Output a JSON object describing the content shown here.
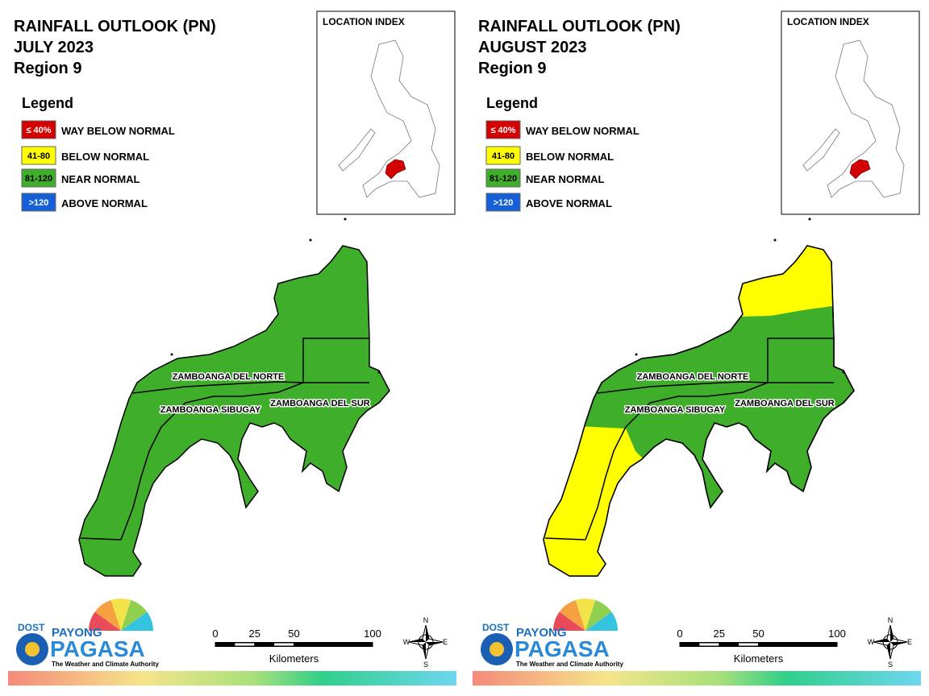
{
  "panels": [
    {
      "title": [
        "RAINFALL OUTLOOK (PN)",
        "JULY 2023",
        "Region 9"
      ],
      "location_index": "LOCATION INDEX",
      "legend": {
        "title": "Legend",
        "items": [
          {
            "range": "≤ 40%",
            "label": "WAY BELOW NORMAL",
            "color": "#d40000",
            "text_color": "#ffffff"
          },
          {
            "range": "41-80",
            "label": "BELOW NORMAL",
            "color": "#ffff00",
            "text_color": "#000000"
          },
          {
            "range": "81-120",
            "label": "NEAR NORMAL",
            "color": "#3fae2a",
            "text_color": "#000000"
          },
          {
            "range": ">120",
            "label": "ABOVE NORMAL",
            "color": "#1560d8",
            "text_color": "#ffffff"
          }
        ]
      },
      "provinces": [
        "ZAMBOANGA DEL NORTE",
        "ZAMBOANGA SIBUGAY",
        "ZAMBOANGA DEL SUR"
      ]
    },
    {
      "title": [
        "RAINFALL OUTLOOK (PN)",
        "AUGUST 2023",
        "Region 9"
      ],
      "location_index": "LOCATION INDEX",
      "legend": {
        "title": "Legend",
        "items": [
          {
            "range": "≤ 40%",
            "label": "WAY BELOW NORMAL",
            "color": "#d40000",
            "text_color": "#ffffff"
          },
          {
            "range": "41-80",
            "label": "BELOW NORMAL",
            "color": "#ffff00",
            "text_color": "#000000"
          },
          {
            "range": "81-120",
            "label": "NEAR NORMAL",
            "color": "#3fae2a",
            "text_color": "#000000"
          },
          {
            "range": ">120",
            "label": "ABOVE NORMAL",
            "color": "#1560d8",
            "text_color": "#ffffff"
          }
        ]
      },
      "provinces": [
        "ZAMBOANGA DEL NORTE",
        "ZAMBOANGA SIBUGAY",
        "ZAMBOANGA DEL SUR"
      ]
    }
  ],
  "scale": {
    "ticks": [
      0,
      25,
      50,
      100
    ],
    "unit": "Kilometers"
  },
  "compass": {
    "n": "N",
    "e": "E",
    "s": "S",
    "w": "W"
  },
  "logo": {
    "agency": "DOST",
    "brand": "PAYONG",
    "name": "PAGASA",
    "tagline": "The Weather and Climate Authority"
  }
}
